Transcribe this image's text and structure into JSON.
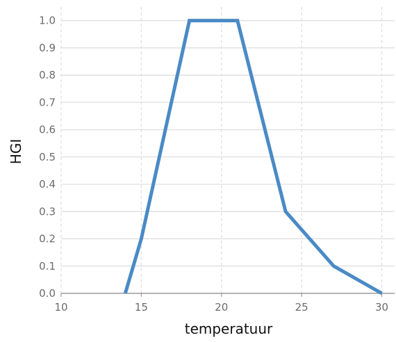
{
  "chart_data": {
    "type": "line",
    "xlabel": "temperatuur",
    "ylabel": "HGI",
    "xlim": [
      10,
      30.8
    ],
    "ylim": [
      0,
      1.05
    ],
    "xticks": [
      10,
      15,
      20,
      25,
      30
    ],
    "yticks": [
      0.0,
      0.1,
      0.2,
      0.3,
      0.4,
      0.5,
      0.6,
      0.7,
      0.8,
      0.9,
      1.0
    ],
    "x_grid": true,
    "y_grid": true,
    "x": [
      14,
      15,
      18,
      21,
      24,
      27,
      30
    ],
    "y": [
      0.0,
      0.2,
      1.0,
      1.0,
      0.3,
      0.1,
      0.0
    ],
    "line_color": "#4a8ac6",
    "grid_color": "#dcdcdc",
    "axis_color": "#9a9a9a"
  }
}
